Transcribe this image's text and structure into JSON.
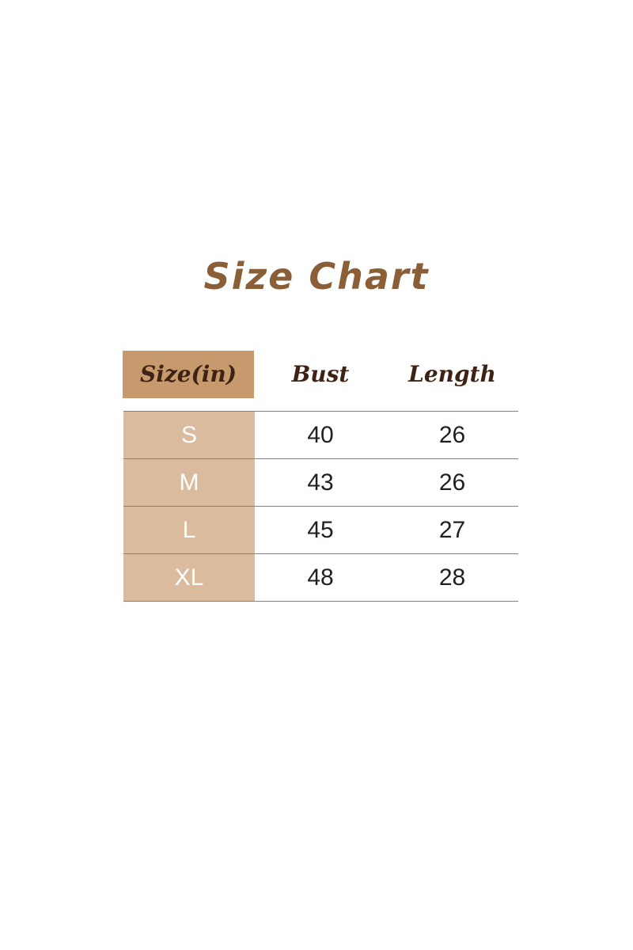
{
  "title": "Size Chart",
  "headers": [
    "Size(in)",
    "Bust",
    "Length"
  ],
  "rows": [
    {
      "size": "S",
      "bust": "40",
      "length": "26"
    },
    {
      "size": "M",
      "bust": "43",
      "length": "26"
    },
    {
      "size": "L",
      "bust": "45",
      "length": "27"
    },
    {
      "size": "XL",
      "bust": "48",
      "length": "28"
    }
  ],
  "colors": {
    "title": "#8a5f37",
    "header_bg": "#c69a6d",
    "size_col_bg": "#dbbb9d",
    "header_text": "#3e2213"
  }
}
